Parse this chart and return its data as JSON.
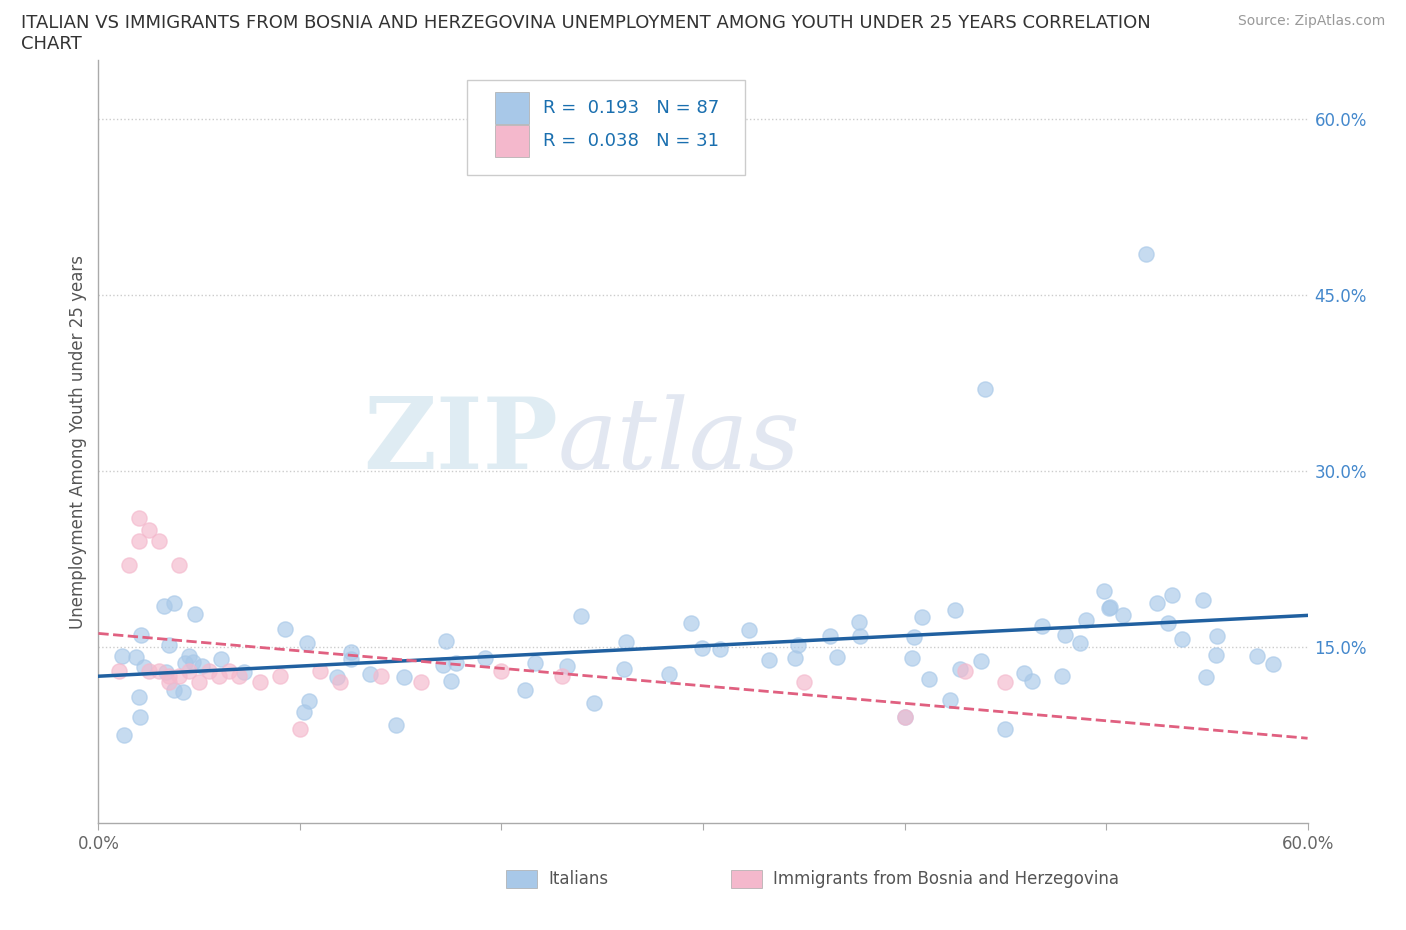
{
  "title_line1": "ITALIAN VS IMMIGRANTS FROM BOSNIA AND HERZEGOVINA UNEMPLOYMENT AMONG YOUTH UNDER 25 YEARS CORRELATION",
  "title_line2": "CHART",
  "source": "Source: ZipAtlas.com",
  "ylabel": "Unemployment Among Youth under 25 years",
  "xlim": [
    0.0,
    0.6
  ],
  "ylim": [
    0.0,
    0.65
  ],
  "xtick_vals": [
    0.0,
    0.1,
    0.2,
    0.3,
    0.4,
    0.5,
    0.6
  ],
  "xtick_labels_show": [
    "0.0%",
    "",
    "",
    "",
    "",
    "",
    "60.0%"
  ],
  "ytick_positions": [
    0.15,
    0.3,
    0.45,
    0.6
  ],
  "ytick_labels": [
    "15.0%",
    "30.0%",
    "45.0%",
    "60.0%"
  ],
  "legend_R1": "0.193",
  "legend_N1": "87",
  "legend_R2": "0.038",
  "legend_N2": "31",
  "color_italian": "#a8c8e8",
  "color_bosnian": "#f4b8cc",
  "trendline_color_italian": "#2060a0",
  "trendline_color_bosnian": "#e06080",
  "background_color": "#ffffff",
  "watermark_zip": "ZIP",
  "watermark_atlas": "atlas",
  "title_fontsize": 13,
  "label_fontsize": 12,
  "tick_fontsize": 12,
  "legend_fontsize": 13
}
